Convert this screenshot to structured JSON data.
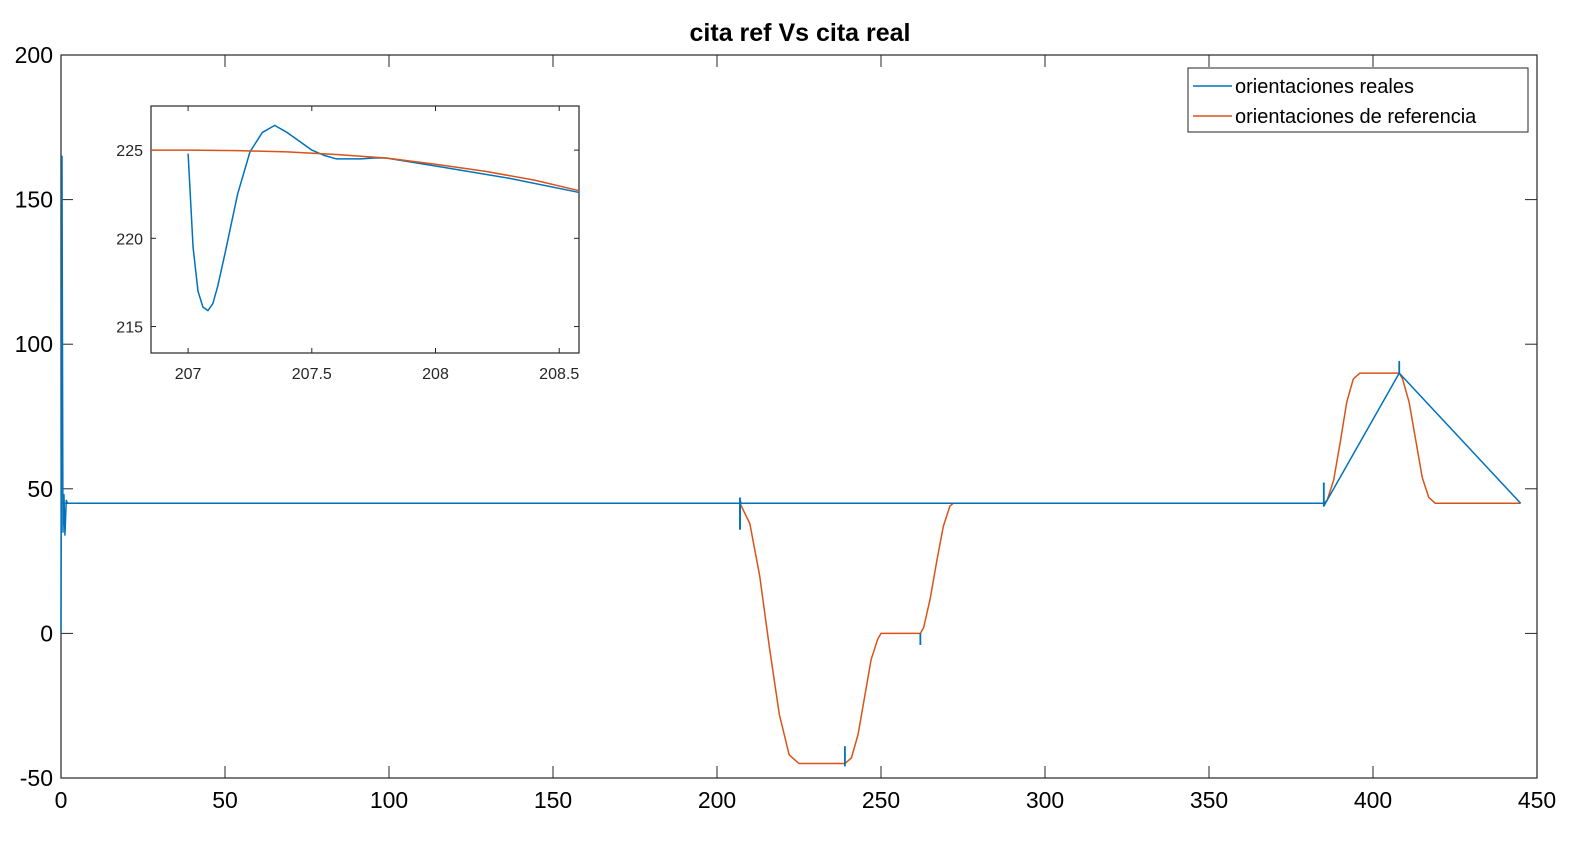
{
  "chart_data": [
    {
      "type": "line",
      "title": "cita ref Vs cita real",
      "xlabel": "",
      "ylabel": "",
      "xlim": [
        0,
        450
      ],
      "ylim": [
        -50,
        200
      ],
      "xticks": [
        "0",
        "50",
        "100",
        "150",
        "200",
        "250",
        "300",
        "350",
        "400",
        "450"
      ],
      "yticks": [
        "-50",
        "0",
        "50",
        "100",
        "150",
        "200"
      ],
      "grid": false,
      "legend": "top-right",
      "series": [
        {
          "name": "orientaciones de referencia",
          "color": "#D95319",
          "x": [
            0,
            207,
            210,
            213,
            216,
            219,
            222,
            225,
            239,
            241,
            243,
            245,
            247,
            249,
            250,
            262,
            263,
            265,
            267,
            269,
            271,
            272,
            385,
            386,
            388,
            390,
            392,
            394,
            396,
            408,
            409,
            411,
            413,
            415,
            417,
            419,
            445
          ],
          "values": [
            45,
            45,
            38,
            20,
            -5,
            -28,
            -42,
            -45,
            -45,
            -43,
            -35,
            -22,
            -9,
            -2,
            0,
            0,
            2,
            12,
            25,
            37,
            44,
            45,
            45,
            46,
            53,
            66,
            80,
            88,
            90,
            90,
            88,
            80,
            67,
            54,
            47,
            45,
            45
          ]
        },
        {
          "name": "orientaciones reales",
          "color": "#0072BD",
          "x": [
            0,
            0.3,
            0.6,
            0.9,
            1.2,
            1.6,
            2,
            207,
            207.05,
            207.1,
            207.3,
            207.5,
            207.8,
            385,
            385,
            385,
            408,
            408,
            408,
            445
          ],
          "values": [
            0,
            165,
            35,
            48,
            34,
            46,
            45,
            45,
            36,
            46,
            45,
            45,
            45,
            45,
            52,
            44,
            90,
            94,
            90,
            45
          ]
        }
      ],
      "spikes": [
        {
          "x": 239,
          "y1": -46,
          "y2": -39
        },
        {
          "x": 262,
          "y1": -4,
          "y2": 0
        },
        {
          "x": 207,
          "y1": 36,
          "y2": 47
        },
        {
          "x": 385,
          "y1": 44,
          "y2": 52
        },
        {
          "x": 408,
          "y1": 90,
          "y2": 94
        }
      ]
    },
    {
      "type": "line",
      "title": "",
      "xlim": [
        206.85,
        208.58
      ],
      "ylim": [
        213.5,
        227.5
      ],
      "xticks": [
        "207",
        "207.5",
        "208",
        "208.5"
      ],
      "yticks": [
        "215",
        "220",
        "225"
      ],
      "grid": false,
      "series": [
        {
          "name": "orientaciones reales",
          "color": "#0072BD",
          "x": [
            207.0,
            207.02,
            207.04,
            207.06,
            207.08,
            207.1,
            207.12,
            207.15,
            207.2,
            207.25,
            207.3,
            207.35,
            207.4,
            207.45,
            207.5,
            207.55,
            207.6,
            207.65,
            207.7,
            207.75,
            207.8,
            208.0,
            208.3,
            208.58
          ],
          "values": [
            224.8,
            219.5,
            217.0,
            216.1,
            215.9,
            216.3,
            217.3,
            219.2,
            222.5,
            224.9,
            226.0,
            226.4,
            226.0,
            225.5,
            225.0,
            224.7,
            224.5,
            224.5,
            224.5,
            224.55,
            224.55,
            224.1,
            223.4,
            222.6
          ]
        },
        {
          "name": "orientaciones de referencia",
          "color": "#D95319",
          "x": [
            206.85,
            207.0,
            207.2,
            207.4,
            207.6,
            207.8,
            208.0,
            208.2,
            208.4,
            208.58
          ],
          "values": [
            225.0,
            225.0,
            224.97,
            224.9,
            224.75,
            224.55,
            224.2,
            223.8,
            223.3,
            222.7
          ]
        }
      ]
    }
  ]
}
